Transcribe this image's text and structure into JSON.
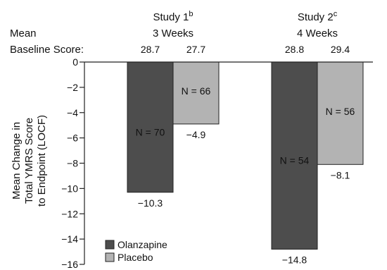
{
  "chart_data": {
    "type": "bar",
    "ylabel_lines": [
      "Mean Change in",
      "Total YMRS Score",
      "to Endpoint (LOCF)"
    ],
    "baseline_label_lines": [
      "Mean",
      "Baseline Score:"
    ],
    "ylim": [
      -16,
      0
    ],
    "yticks": [
      0,
      -2,
      -4,
      -6,
      -8,
      -10,
      -12,
      -14,
      -16
    ],
    "ytick_labels": [
      "0",
      "−2",
      "−4",
      "−6",
      "−8",
      "−10",
      "−12",
      "−14",
      "−16"
    ],
    "groups": [
      {
        "name": "Study 1",
        "superscript": "b",
        "duration": "3 Weeks",
        "bars": [
          {
            "series": "Olanzapine",
            "baseline": "28.7",
            "value": -10.3,
            "value_label": "−10.3",
            "n_label": "N = 70"
          },
          {
            "series": "Placebo",
            "baseline": "27.7",
            "value": -4.9,
            "value_label": "−4.9",
            "n_label": "N = 66"
          }
        ]
      },
      {
        "name": "Study 2",
        "superscript": "c",
        "duration": "4 Weeks",
        "bars": [
          {
            "series": "Olanzapine",
            "baseline": "28.8",
            "value": -14.8,
            "value_label": "−14.8",
            "n_label": "N = 54"
          },
          {
            "series": "Placebo",
            "baseline": "29.4",
            "value": -8.1,
            "value_label": "−8.1",
            "n_label": "N = 56"
          }
        ]
      }
    ],
    "legend": {
      "placement": "bottom-left",
      "entries": [
        {
          "name": "Olanzapine",
          "color": "#4d4d4d"
        },
        {
          "name": "Placebo",
          "color": "#b3b3b3"
        }
      ]
    },
    "colors": {
      "Olanzapine": "#4d4d4d",
      "Placebo": "#b3b3b3",
      "n_label_on_dark": "#ffffff",
      "n_label_on_light": "#111111"
    }
  }
}
